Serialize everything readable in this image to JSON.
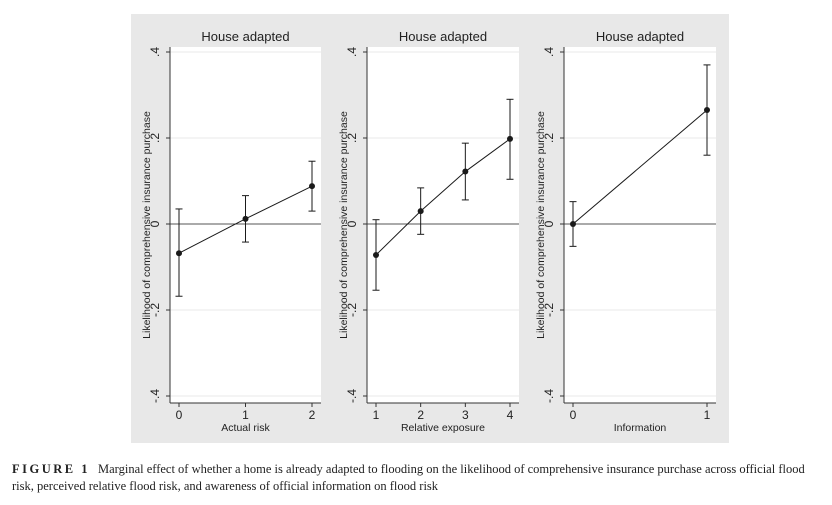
{
  "chart_data": [
    {
      "type": "line",
      "title": "House adapted",
      "xlabel": "Actual risk",
      "ylabel": "Likelihood of comprehensive insurance purchase",
      "x": [
        0,
        1,
        2
      ],
      "xticks": [
        "0",
        "1",
        "2"
      ],
      "ylim": [
        -0.4,
        0.4
      ],
      "yticks": [
        -0.4,
        -0.2,
        0,
        0.2,
        0.4
      ],
      "ytick_labels": [
        "-.4",
        "-.2",
        "0",
        ".2",
        ".4"
      ],
      "series": [
        {
          "values": [
            -0.068,
            0.012,
            0.088
          ],
          "ci_low": [
            -0.168,
            -0.042,
            0.03
          ],
          "ci_high": [
            0.035,
            0.066,
            0.146
          ]
        }
      ],
      "reference_line_y": 0,
      "grid": "horizontal",
      "colors": {
        "background": "#e8e8e8",
        "plot": "#ffffff",
        "line": "#1a1a1a"
      }
    },
    {
      "type": "line",
      "title": "House adapted",
      "xlabel": "Relative exposure",
      "ylabel": "Likelihood of comprehensive insurance purchase",
      "x": [
        1,
        2,
        3,
        4
      ],
      "xticks": [
        "1",
        "2",
        "3",
        "4"
      ],
      "ylim": [
        -0.4,
        0.4
      ],
      "yticks": [
        -0.4,
        -0.2,
        0,
        0.2,
        0.4
      ],
      "ytick_labels": [
        "-.4",
        "-.2",
        "0",
        ".2",
        ".4"
      ],
      "series": [
        {
          "values": [
            -0.072,
            0.03,
            0.122,
            0.198
          ],
          "ci_low": [
            -0.154,
            -0.024,
            0.056,
            0.104
          ],
          "ci_high": [
            0.01,
            0.084,
            0.188,
            0.29
          ]
        }
      ],
      "reference_line_y": 0,
      "grid": "horizontal",
      "colors": {
        "background": "#e8e8e8",
        "plot": "#ffffff",
        "line": "#1a1a1a"
      }
    },
    {
      "type": "line",
      "title": "House adapted",
      "xlabel": "Information",
      "ylabel": "Likelihood of comprehensive insurance purchase",
      "x": [
        0,
        1
      ],
      "xticks": [
        "0",
        "1"
      ],
      "ylim": [
        -0.4,
        0.4
      ],
      "yticks": [
        -0.4,
        -0.2,
        0,
        0.2,
        0.4
      ],
      "ytick_labels": [
        "-.4",
        "-.2",
        "0",
        ".2",
        ".4"
      ],
      "series": [
        {
          "values": [
            0.0,
            0.265
          ],
          "ci_low": [
            -0.052,
            0.16
          ],
          "ci_high": [
            0.052,
            0.37
          ]
        }
      ],
      "reference_line_y": 0,
      "grid": "horizontal",
      "colors": {
        "background": "#e8e8e8",
        "plot": "#ffffff",
        "line": "#1a1a1a"
      }
    }
  ],
  "caption": {
    "label": "FIGURE 1",
    "text": "Marginal effect of whether a home is already adapted to flooding on the likelihood of comprehensive insurance purchase across official flood risk, perceived relative flood risk, and awareness of official information on flood risk"
  }
}
